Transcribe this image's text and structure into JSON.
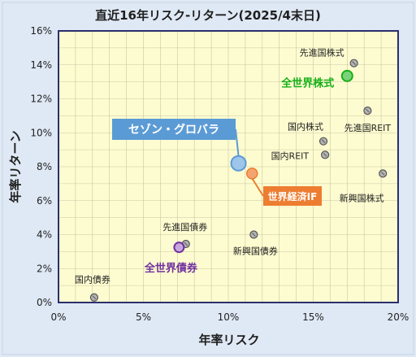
{
  "chart_data": {
    "type": "scatter",
    "title": "直近16年リスク-リターン(2025/4末日)",
    "xlabel": "年率リスク",
    "ylabel": "年率リターン",
    "xlim": [
      0,
      20
    ],
    "ylim": [
      0,
      16
    ],
    "x_ticks": [
      "0%",
      "5%",
      "10%",
      "15%",
      "20%"
    ],
    "y_ticks": [
      "0%",
      "2%",
      "4%",
      "6%",
      "8%",
      "10%",
      "12%",
      "14%",
      "16%"
    ],
    "grid": true,
    "points": [
      {
        "label": "先進国株式",
        "x": 17.4,
        "y": 14.1,
        "style": "gray"
      },
      {
        "label": "全世界株式",
        "x": 17.0,
        "y": 13.35,
        "style": "green"
      },
      {
        "label": "先進国REIT",
        "x": 18.2,
        "y": 11.3,
        "style": "gray"
      },
      {
        "label": "国内株式",
        "x": 15.6,
        "y": 9.5,
        "style": "gray"
      },
      {
        "label": "国内REIT",
        "x": 15.7,
        "y": 8.7,
        "style": "gray"
      },
      {
        "label": "新興国株式",
        "x": 19.1,
        "y": 7.6,
        "style": "gray"
      },
      {
        "label": "セゾン・グロバラ",
        "x": 10.6,
        "y": 8.2,
        "style": "blue"
      },
      {
        "label": "世界経済IF",
        "x": 11.4,
        "y": 7.6,
        "style": "orange"
      },
      {
        "label": "新興国債券",
        "x": 11.5,
        "y": 4.0,
        "style": "gray"
      },
      {
        "label": "先進国債券",
        "x": 7.5,
        "y": 3.45,
        "style": "gray"
      },
      {
        "label": "全世界債券",
        "x": 7.1,
        "y": 3.25,
        "style": "purple"
      },
      {
        "label": "国内債券",
        "x": 2.1,
        "y": 0.3,
        "style": "gray"
      }
    ]
  },
  "colors": {
    "background": "#dfe9f5",
    "plot_area": "#fdfcd0",
    "plot_border": "#2a2f6e",
    "grid": "#c9c6a4",
    "gray_marker": "#8c8c8c",
    "green": "#17b017",
    "blue": "#5b9bd5",
    "orange": "#ed7d31",
    "purple": "#7030a0"
  }
}
